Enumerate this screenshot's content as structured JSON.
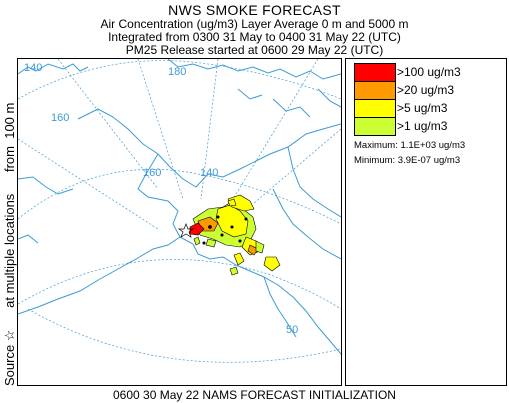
{
  "header": {
    "title": "NWS SMOKE FORECAST",
    "line1": "Air Concentration (ug/m3) Layer Average    0 m and  5000 m",
    "line2": "Integrated from 0300 31 May to 0400 31 May 22 (UTC)",
    "line3": "PM25 Release started at 0600 29 May 22 (UTC)"
  },
  "side_label": {
    "part1": "Source ☆",
    "part2": "at multiple locations",
    "part3": "from  100 m"
  },
  "map": {
    "graticule_labels": [
      "140",
      "160",
      "180",
      "160",
      "140",
      "50"
    ],
    "coast_color": "#3d9bd6",
    "graticule_color": "#3d9bd6"
  },
  "legend": {
    "items": [
      {
        "label": ">100 ug/m3",
        "color": "#ff0000"
      },
      {
        "label": ">20 ug/m3",
        "color": "#ff9900"
      },
      {
        "label": ">5 ug/m3",
        "color": "#ffff00"
      },
      {
        "label": ">1 ug/m3",
        "color": "#ccff33"
      }
    ],
    "maximum": "Maximum: 1.1E+03 ug/m3",
    "minimum": "Minimum: 3.9E-07 ug/m3"
  },
  "footer": "0600 30 May 22 NAMS FORECAST INITIALIZATION"
}
